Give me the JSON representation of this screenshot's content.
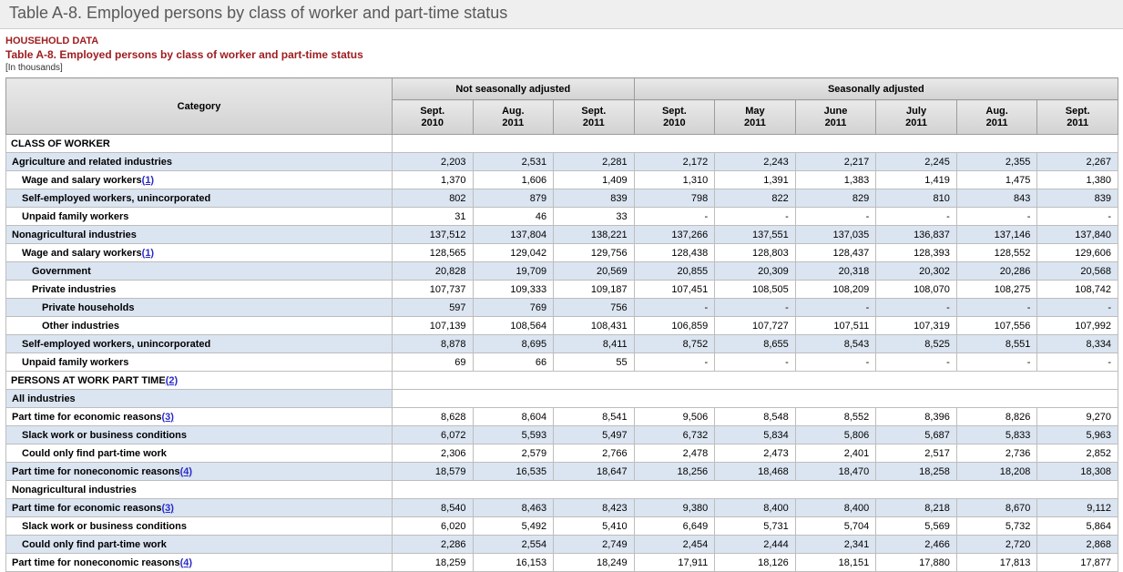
{
  "page": {
    "top_title": "Table A-8. Employed persons by class of worker and part-time status",
    "household_label": "HOUSEHOLD DATA",
    "table_title": "Table A-8. Employed persons by class of worker and part-time status",
    "units_note": "[In thousands]",
    "accent_color": "#9e1b1e",
    "shaded_row_color": "#dbe5f1"
  },
  "table": {
    "category_header": "Category",
    "group_headers": [
      {
        "label": "Not seasonally adjusted",
        "colspan": 3
      },
      {
        "label": "Seasonally adjusted",
        "colspan": 6
      }
    ],
    "column_headers": [
      "Sept.\n2010",
      "Aug.\n2011",
      "Sept.\n2011",
      "Sept.\n2010",
      "May\n2011",
      "June\n2011",
      "July\n2011",
      "Aug.\n2011",
      "Sept.\n2011"
    ],
    "rows": [
      {
        "type": "section",
        "label": "CLASS OF WORKER",
        "indent": 0,
        "shaded": false
      },
      {
        "type": "data",
        "label": "Agriculture and related industries",
        "indent": 1,
        "shaded": true,
        "values": [
          "2,203",
          "2,531",
          "2,281",
          "2,172",
          "2,243",
          "2,217",
          "2,245",
          "2,355",
          "2,267"
        ]
      },
      {
        "type": "data",
        "label": "Wage and salary workers",
        "footnote": "(1)",
        "indent": 2,
        "shaded": false,
        "values": [
          "1,370",
          "1,606",
          "1,409",
          "1,310",
          "1,391",
          "1,383",
          "1,419",
          "1,475",
          "1,380"
        ]
      },
      {
        "type": "data",
        "label": "Self-employed workers, unincorporated",
        "indent": 2,
        "shaded": true,
        "values": [
          "802",
          "879",
          "839",
          "798",
          "822",
          "829",
          "810",
          "843",
          "839"
        ]
      },
      {
        "type": "data",
        "label": "Unpaid family workers",
        "indent": 2,
        "shaded": false,
        "values": [
          "31",
          "46",
          "33",
          "-",
          "-",
          "-",
          "-",
          "-",
          "-"
        ]
      },
      {
        "type": "data",
        "label": "Nonagricultural industries",
        "indent": 1,
        "shaded": true,
        "values": [
          "137,512",
          "137,804",
          "138,221",
          "137,266",
          "137,551",
          "137,035",
          "136,837",
          "137,146",
          "137,840"
        ]
      },
      {
        "type": "data",
        "label": "Wage and salary workers",
        "footnote": "(1)",
        "indent": 2,
        "shaded": false,
        "values": [
          "128,565",
          "129,042",
          "129,756",
          "128,438",
          "128,803",
          "128,437",
          "128,393",
          "128,552",
          "129,606"
        ]
      },
      {
        "type": "data",
        "label": "Government",
        "indent": 3,
        "shaded": true,
        "values": [
          "20,828",
          "19,709",
          "20,569",
          "20,855",
          "20,309",
          "20,318",
          "20,302",
          "20,286",
          "20,568"
        ]
      },
      {
        "type": "data",
        "label": "Private industries",
        "indent": 3,
        "shaded": false,
        "values": [
          "107,737",
          "109,333",
          "109,187",
          "107,451",
          "108,505",
          "108,209",
          "108,070",
          "108,275",
          "108,742"
        ]
      },
      {
        "type": "data",
        "label": "Private households",
        "indent": 4,
        "shaded": true,
        "values": [
          "597",
          "769",
          "756",
          "-",
          "-",
          "-",
          "-",
          "-",
          "-"
        ]
      },
      {
        "type": "data",
        "label": "Other industries",
        "indent": 4,
        "shaded": false,
        "values": [
          "107,139",
          "108,564",
          "108,431",
          "106,859",
          "107,727",
          "107,511",
          "107,319",
          "107,556",
          "107,992"
        ]
      },
      {
        "type": "data",
        "label": "Self-employed workers, unincorporated",
        "indent": 2,
        "shaded": true,
        "values": [
          "8,878",
          "8,695",
          "8,411",
          "8,752",
          "8,655",
          "8,543",
          "8,525",
          "8,551",
          "8,334"
        ]
      },
      {
        "type": "data",
        "label": "Unpaid family workers",
        "indent": 2,
        "shaded": false,
        "values": [
          "69",
          "66",
          "55",
          "-",
          "-",
          "-",
          "-",
          "-",
          "-"
        ]
      },
      {
        "type": "section",
        "label": "PERSONS AT WORK PART TIME",
        "footnote": "(2)",
        "indent": 0,
        "shaded": false
      },
      {
        "type": "subsection",
        "label": "All industries",
        "indent": 1,
        "shaded": true
      },
      {
        "type": "data",
        "label": "Part time for economic reasons",
        "footnote": "(3)",
        "indent": 1,
        "shaded": false,
        "values": [
          "8,628",
          "8,604",
          "8,541",
          "9,506",
          "8,548",
          "8,552",
          "8,396",
          "8,826",
          "9,270"
        ]
      },
      {
        "type": "data",
        "label": "Slack work or business conditions",
        "indent": 2,
        "shaded": true,
        "values": [
          "6,072",
          "5,593",
          "5,497",
          "6,732",
          "5,834",
          "5,806",
          "5,687",
          "5,833",
          "5,963"
        ]
      },
      {
        "type": "data",
        "label": "Could only find part-time work",
        "indent": 2,
        "shaded": false,
        "values": [
          "2,306",
          "2,579",
          "2,766",
          "2,478",
          "2,473",
          "2,401",
          "2,517",
          "2,736",
          "2,852"
        ]
      },
      {
        "type": "data",
        "label": "Part time for noneconomic reasons",
        "footnote": "(4)",
        "indent": 1,
        "shaded": true,
        "values": [
          "18,579",
          "16,535",
          "18,647",
          "18,256",
          "18,468",
          "18,470",
          "18,258",
          "18,208",
          "18,308"
        ]
      },
      {
        "type": "subsection",
        "label": "Nonagricultural industries",
        "indent": 1,
        "shaded": false
      },
      {
        "type": "data",
        "label": "Part time for economic reasons",
        "footnote": "(3)",
        "indent": 1,
        "shaded": true,
        "values": [
          "8,540",
          "8,463",
          "8,423",
          "9,380",
          "8,400",
          "8,400",
          "8,218",
          "8,670",
          "9,112"
        ]
      },
      {
        "type": "data",
        "label": "Slack work or business conditions",
        "indent": 2,
        "shaded": false,
        "values": [
          "6,020",
          "5,492",
          "5,410",
          "6,649",
          "5,731",
          "5,704",
          "5,569",
          "5,732",
          "5,864"
        ]
      },
      {
        "type": "data",
        "label": "Could only find part-time work",
        "indent": 2,
        "shaded": true,
        "values": [
          "2,286",
          "2,554",
          "2,749",
          "2,454",
          "2,444",
          "2,341",
          "2,466",
          "2,720",
          "2,868"
        ]
      },
      {
        "type": "data",
        "label": "Part time for noneconomic reasons",
        "footnote": "(4)",
        "indent": 1,
        "shaded": false,
        "values": [
          "18,259",
          "16,153",
          "18,249",
          "17,911",
          "18,126",
          "18,151",
          "17,880",
          "17,813",
          "17,877"
        ]
      }
    ]
  }
}
